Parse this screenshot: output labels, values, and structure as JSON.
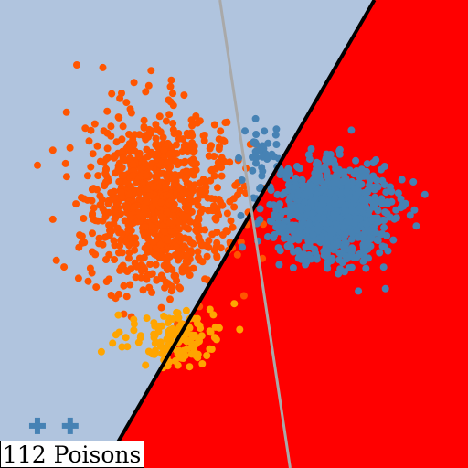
{
  "chart_data": {
    "type": "scatter",
    "title": "",
    "xlabel": "",
    "ylabel": "",
    "xlim": [
      0,
      1
    ],
    "ylim": [
      0,
      1
    ],
    "grid": false,
    "legend": "none",
    "annotation": "112 Poisons",
    "regions": [
      {
        "name": "",
        "color": "#b0c4de"
      },
      {
        "name": "",
        "color": "#ff0000"
      }
    ],
    "boundaries": [
      {
        "name": "",
        "color": "#000000",
        "points": [
          [
            0.22,
            0.0
          ],
          [
            0.8,
            1.0
          ]
        ]
      },
      {
        "name": "",
        "color": "#a9a9a9",
        "points": [
          [
            0.47,
            1.0
          ],
          [
            0.62,
            0.0
          ]
        ]
      }
    ],
    "series": [
      {
        "name": "",
        "color": "#ff5500",
        "marker": "circle",
        "clusters": [
          {
            "center": [
              0.34,
              0.57
            ],
            "spread": [
              0.075,
              0.09
            ],
            "count": 1000
          }
        ]
      },
      {
        "name": "",
        "color": "#4682b4",
        "marker": "circle",
        "clusters": [
          {
            "center": [
              0.71,
              0.55
            ],
            "spread": [
              0.058,
              0.05
            ],
            "count": 1000
          },
          {
            "center": [
              0.56,
              0.66
            ],
            "spread": [
              0.02,
              0.04
            ],
            "count": 40
          }
        ]
      },
      {
        "name": "",
        "color": "#ffa500",
        "marker": "circle",
        "clusters": [
          {
            "center": [
              0.39,
              0.28
            ],
            "spread": [
              0.035,
              0.035
            ],
            "count": 110
          },
          {
            "center": [
              0.3,
              0.28
            ],
            "spread": [
              0.04,
              0.03
            ],
            "count": 25
          }
        ]
      },
      {
        "name": "",
        "color": "#4682b4",
        "marker": "plus",
        "points": [
          [
            0.08,
            0.09
          ],
          [
            0.15,
            0.09
          ]
        ]
      }
    ]
  }
}
